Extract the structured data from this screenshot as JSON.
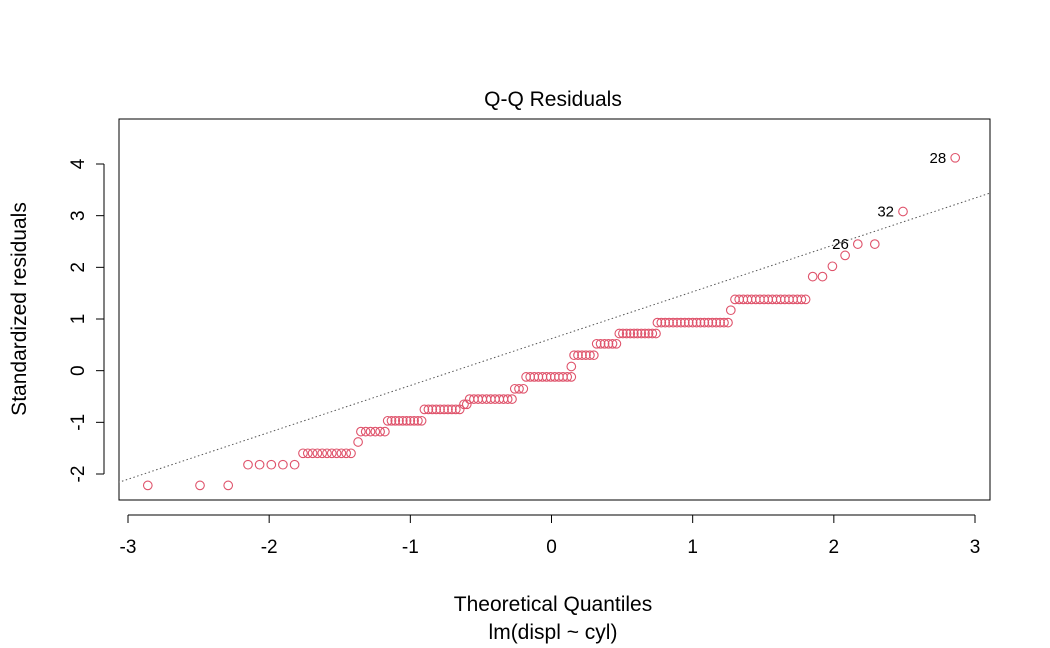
{
  "chart_data": {
    "type": "scatter",
    "title": "Q-Q Residuals",
    "xlabel": "Theoretical Quantiles",
    "ylabel": "Standardized residuals",
    "subtitle": "lm(displ ~ cyl)",
    "xlim": [
      -3.0,
      3.0
    ],
    "ylim": [
      -2.5,
      4.5
    ],
    "x_ticks": [
      -3,
      -2,
      -1,
      0,
      1,
      2,
      3
    ],
    "y_ticks": [
      -2,
      -1,
      0,
      1,
      2,
      3,
      4
    ],
    "x_tick_labels": [
      "-3",
      "-2",
      "-1",
      "0",
      "1",
      "2",
      "3"
    ],
    "y_tick_labels": [
      "-2",
      "-1",
      "0",
      "1",
      "2",
      "3",
      "4"
    ],
    "grid": false,
    "point_color": "#DF536B",
    "reference_line": {
      "slope": 0.907,
      "intercept": 0.62,
      "style": "dotted",
      "color": "#555555"
    },
    "labeled_points": [
      {
        "label": "28",
        "x": 2.86,
        "y": 4.12
      },
      {
        "label": "32",
        "x": 2.49,
        "y": 3.08
      },
      {
        "label": "26",
        "x": 2.17,
        "y": 2.45
      }
    ],
    "segments": [
      {
        "x_start": -2.86,
        "x_end": -2.86,
        "y": -2.22,
        "n": 1
      },
      {
        "x_start": -2.49,
        "x_end": -2.49,
        "y": -2.22,
        "n": 1
      },
      {
        "x_start": -2.29,
        "x_end": -2.29,
        "y": -2.22,
        "n": 1
      },
      {
        "x_start": -2.15,
        "x_end": -1.82,
        "y": -1.82,
        "n": 5
      },
      {
        "x_start": -1.76,
        "x_end": -1.42,
        "y": -1.6,
        "n": 11
      },
      {
        "x_start": -1.37,
        "x_end": -1.37,
        "y": -1.38,
        "n": 1
      },
      {
        "x_start": -1.35,
        "x_end": -1.18,
        "y": -1.18,
        "n": 6
      },
      {
        "x_start": -1.16,
        "x_end": -0.92,
        "y": -0.97,
        "n": 10
      },
      {
        "x_start": -0.9,
        "x_end": -0.65,
        "y": -0.75,
        "n": 10
      },
      {
        "x_start": -0.62,
        "x_end": -0.6,
        "y": -0.65,
        "n": 2
      },
      {
        "x_start": -0.58,
        "x_end": -0.28,
        "y": -0.55,
        "n": 11
      },
      {
        "x_start": -0.26,
        "x_end": -0.2,
        "y": -0.35,
        "n": 3
      },
      {
        "x_start": -0.18,
        "x_end": 0.14,
        "y": -0.12,
        "n": 12
      },
      {
        "x_start": 0.14,
        "x_end": 0.14,
        "y": 0.08,
        "n": 1
      },
      {
        "x_start": 0.16,
        "x_end": 0.3,
        "y": 0.3,
        "n": 6
      },
      {
        "x_start": 0.32,
        "x_end": 0.46,
        "y": 0.52,
        "n": 6
      },
      {
        "x_start": 0.48,
        "x_end": 0.74,
        "y": 0.72,
        "n": 11
      },
      {
        "x_start": 0.75,
        "x_end": 1.25,
        "y": 0.93,
        "n": 19
      },
      {
        "x_start": 1.27,
        "x_end": 1.27,
        "y": 1.17,
        "n": 1
      },
      {
        "x_start": 1.3,
        "x_end": 1.8,
        "y": 1.38,
        "n": 18
      },
      {
        "x_start": 1.85,
        "x_end": 1.92,
        "y": 1.82,
        "n": 2
      },
      {
        "x_start": 1.99,
        "x_end": 1.99,
        "y": 2.02,
        "n": 1
      },
      {
        "x_start": 2.08,
        "x_end": 2.08,
        "y": 2.23,
        "n": 1
      },
      {
        "x_start": 2.17,
        "x_end": 2.17,
        "y": 2.45,
        "n": 1
      },
      {
        "x_start": 2.29,
        "x_end": 2.29,
        "y": 2.45,
        "n": 1
      },
      {
        "x_start": 2.49,
        "x_end": 2.49,
        "y": 3.08,
        "n": 1
      },
      {
        "x_start": 2.86,
        "x_end": 2.86,
        "y": 4.12,
        "n": 1
      }
    ]
  }
}
